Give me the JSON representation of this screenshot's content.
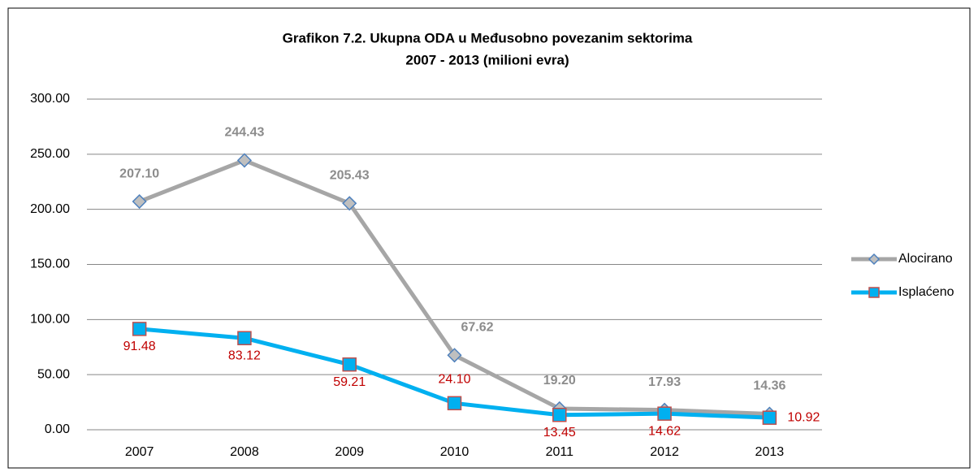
{
  "chart_data": {
    "type": "line",
    "title": "Grafikon 7.2. Ukupna ODA u Međusobno povezanim sektorima",
    "subtitle": "2007 - 2013 (milioni evra)",
    "categories": [
      "2007",
      "2008",
      "2009",
      "2010",
      "2011",
      "2012",
      "2013"
    ],
    "series": [
      {
        "name": "Alocirano",
        "color": "#a6a6a6",
        "marker": "diamond",
        "marker_fill": "#bfbfbf",
        "marker_stroke": "#4f81bd",
        "label_color": "#8c8c8c",
        "values": [
          207.1,
          244.43,
          205.43,
          67.62,
          19.2,
          17.93,
          14.36
        ],
        "value_labels": [
          "207.10",
          "244.43",
          "205.43",
          "67.62",
          "19.20",
          "17.93",
          "14.36"
        ]
      },
      {
        "name": "Isplaćeno",
        "color": "#00b0f0",
        "marker": "square",
        "marker_fill": "#00b0f0",
        "marker_stroke": "#c0504d",
        "label_color": "#c00000",
        "values": [
          91.48,
          83.12,
          59.21,
          24.1,
          13.45,
          14.62,
          10.92
        ],
        "value_labels": [
          "91.48",
          "83.12",
          "59.21",
          "24.10",
          "13.45",
          "14.62",
          "10.92"
        ]
      }
    ],
    "ylim": [
      0,
      300
    ],
    "yticks": [
      {
        "value": 0,
        "label": "0.00"
      },
      {
        "value": 50,
        "label": "50.00"
      },
      {
        "value": 100,
        "label": "100.00"
      },
      {
        "value": 150,
        "label": "150.00"
      },
      {
        "value": 200,
        "label": "200.00"
      },
      {
        "value": 250,
        "label": "250.00"
      },
      {
        "value": 300,
        "label": "300.00"
      }
    ],
    "grid": true,
    "legend": "right"
  }
}
